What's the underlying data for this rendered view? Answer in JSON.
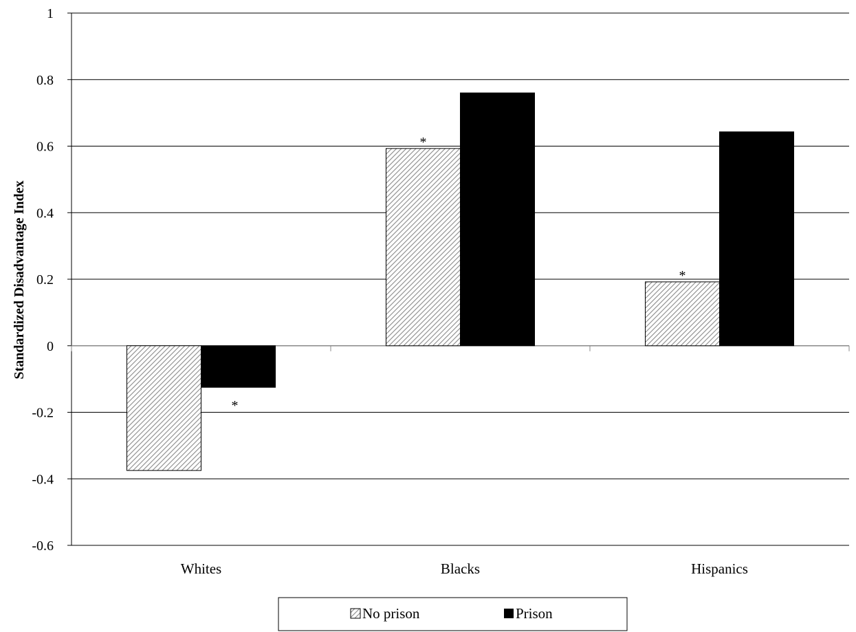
{
  "chart_data": {
    "type": "bar",
    "ylabel": "Standardized Disadvantage Index",
    "categories": [
      "Whites",
      "Blacks",
      "Hispanics"
    ],
    "series": [
      {
        "name": "No prison",
        "values": [
          -0.375,
          0.593,
          0.192
        ],
        "pattern": "diagonal-hatch"
      },
      {
        "name": "Prison",
        "values": [
          -0.125,
          0.76,
          0.643
        ],
        "color": "#000000"
      }
    ],
    "ylim": [
      -0.6,
      1
    ],
    "yticks": [
      -0.6,
      -0.4,
      -0.2,
      0,
      0.2,
      0.4,
      0.6,
      0.8,
      1
    ],
    "ytick_labels": [
      "-0.6",
      "-0.4",
      "-0.2",
      "0",
      "0.2",
      "0.4",
      "0.6",
      "0.8",
      "1"
    ],
    "grid": true,
    "legend": {
      "position": "bottom-center",
      "entries": [
        "No prison",
        "Prison"
      ]
    },
    "annotations": [
      {
        "text": "*",
        "category": "Whites",
        "series": "Prison",
        "placement": "below-bar-end"
      },
      {
        "text": "*",
        "category": "Blacks",
        "series": "No prison",
        "placement": "above-bar"
      },
      {
        "text": "*",
        "category": "Hispanics",
        "series": "No prison",
        "placement": "above-bar"
      }
    ]
  }
}
